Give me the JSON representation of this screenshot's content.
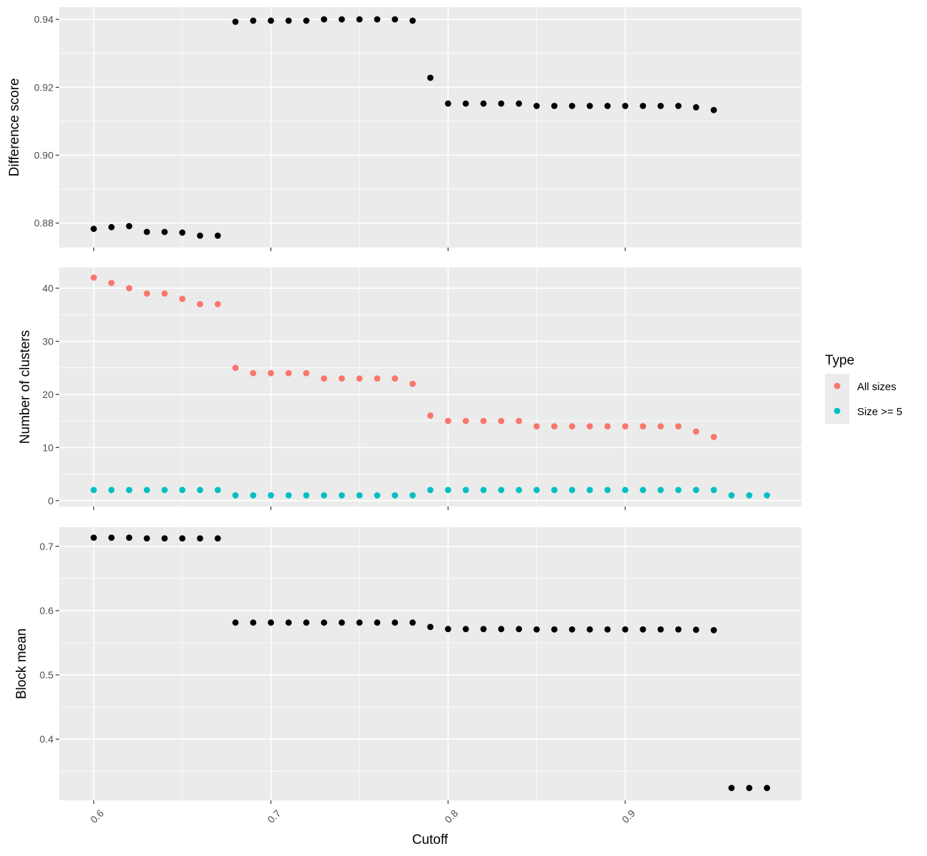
{
  "chart_data": {
    "type": "scatter",
    "xlabel": "Cutoff",
    "x_ticks": [
      0.6,
      0.7,
      0.8,
      0.9
    ],
    "xlim": [
      0.5805,
      0.9995
    ],
    "legend": {
      "title": "Type",
      "position": "right",
      "entries": [
        {
          "name": "All sizes",
          "color": "#F8766D"
        },
        {
          "name": "Size >= 5",
          "color": "#00BFC4"
        }
      ]
    },
    "panels": [
      {
        "ylabel": "Difference score",
        "ylim": [
          0.8728,
          0.9436
        ],
        "y_ticks": [
          0.88,
          0.9,
          0.92,
          0.94
        ],
        "series": [
          {
            "color": "#000000",
            "x": [
              0.6,
              0.61,
              0.62,
              0.63,
              0.64,
              0.65,
              0.66,
              0.67,
              0.68,
              0.69,
              0.7,
              0.71,
              0.72,
              0.73,
              0.74,
              0.75,
              0.76,
              0.77,
              0.78,
              0.79,
              0.8,
              0.81,
              0.82,
              0.83,
              0.84,
              0.85,
              0.86,
              0.87,
              0.88,
              0.89,
              0.9,
              0.91,
              0.92,
              0.93,
              0.94,
              0.95
            ],
            "y": [
              0.8783,
              0.8788,
              0.8791,
              0.8774,
              0.8774,
              0.8772,
              0.8763,
              0.8763,
              0.9393,
              0.9396,
              0.9396,
              0.9396,
              0.9396,
              0.94,
              0.94,
              0.94,
              0.94,
              0.94,
              0.9396,
              0.9228,
              0.9152,
              0.9152,
              0.9152,
              0.9152,
              0.9152,
              0.9145,
              0.9145,
              0.9145,
              0.9145,
              0.9145,
              0.9145,
              0.9145,
              0.9145,
              0.9145,
              0.9141,
              0.9133
            ]
          }
        ]
      },
      {
        "ylabel": "Number of clusters",
        "ylim": [
          -1.1,
          43.9
        ],
        "y_ticks": [
          0,
          10,
          20,
          30,
          40
        ],
        "series": [
          {
            "name": "All sizes",
            "color": "#F8766D",
            "x": [
              0.6,
              0.61,
              0.62,
              0.63,
              0.64,
              0.65,
              0.66,
              0.67,
              0.68,
              0.69,
              0.7,
              0.71,
              0.72,
              0.73,
              0.74,
              0.75,
              0.76,
              0.77,
              0.78,
              0.79,
              0.8,
              0.81,
              0.82,
              0.83,
              0.84,
              0.85,
              0.86,
              0.87,
              0.88,
              0.89,
              0.9,
              0.91,
              0.92,
              0.93,
              0.94,
              0.95
            ],
            "y": [
              42,
              41,
              40,
              39,
              39,
              38,
              37,
              37,
              25,
              24,
              24,
              24,
              24,
              23,
              23,
              23,
              23,
              23,
              22,
              16,
              15,
              15,
              15,
              15,
              15,
              14,
              14,
              14,
              14,
              14,
              14,
              14,
              14,
              14,
              13,
              12
            ]
          },
          {
            "name": "Size >= 5",
            "color": "#00BFC4",
            "x": [
              0.6,
              0.61,
              0.62,
              0.63,
              0.64,
              0.65,
              0.66,
              0.67,
              0.68,
              0.69,
              0.7,
              0.71,
              0.72,
              0.73,
              0.74,
              0.75,
              0.76,
              0.77,
              0.78,
              0.79,
              0.8,
              0.81,
              0.82,
              0.83,
              0.84,
              0.85,
              0.86,
              0.87,
              0.88,
              0.89,
              0.9,
              0.91,
              0.92,
              0.93,
              0.94,
              0.95,
              0.96,
              0.97,
              0.98
            ],
            "y": [
              2,
              2,
              2,
              2,
              2,
              2,
              2,
              2,
              1,
              1,
              1,
              1,
              1,
              1,
              1,
              1,
              1,
              1,
              1,
              2,
              2,
              2,
              2,
              2,
              2,
              2,
              2,
              2,
              2,
              2,
              2,
              2,
              2,
              2,
              2,
              2,
              1,
              1,
              1
            ]
          }
        ]
      },
      {
        "ylabel": "Block mean",
        "ylim": [
          0.3048,
          0.7298
        ],
        "y_ticks": [
          0.4,
          0.5,
          0.6,
          0.7
        ],
        "series": [
          {
            "color": "#000000",
            "x": [
              0.6,
              0.61,
              0.62,
              0.63,
              0.64,
              0.65,
              0.66,
              0.67,
              0.68,
              0.69,
              0.7,
              0.71,
              0.72,
              0.73,
              0.74,
              0.75,
              0.76,
              0.77,
              0.78,
              0.79,
              0.8,
              0.81,
              0.82,
              0.83,
              0.84,
              0.85,
              0.86,
              0.87,
              0.88,
              0.89,
              0.9,
              0.91,
              0.92,
              0.93,
              0.94,
              0.95,
              0.96,
              0.97,
              0.98
            ],
            "y": [
              0.7134,
              0.7134,
              0.7134,
              0.7123,
              0.7123,
              0.7123,
              0.7123,
              0.7123,
              0.5813,
              0.5813,
              0.5813,
              0.5813,
              0.5813,
              0.5813,
              0.5813,
              0.5813,
              0.5813,
              0.5813,
              0.5813,
              0.5746,
              0.5713,
              0.5713,
              0.5713,
              0.5713,
              0.5713,
              0.5707,
              0.5707,
              0.5707,
              0.5707,
              0.5707,
              0.5707,
              0.5707,
              0.5707,
              0.5707,
              0.5702,
              0.5696,
              0.3241,
              0.3241,
              0.3241
            ]
          }
        ]
      }
    ]
  }
}
